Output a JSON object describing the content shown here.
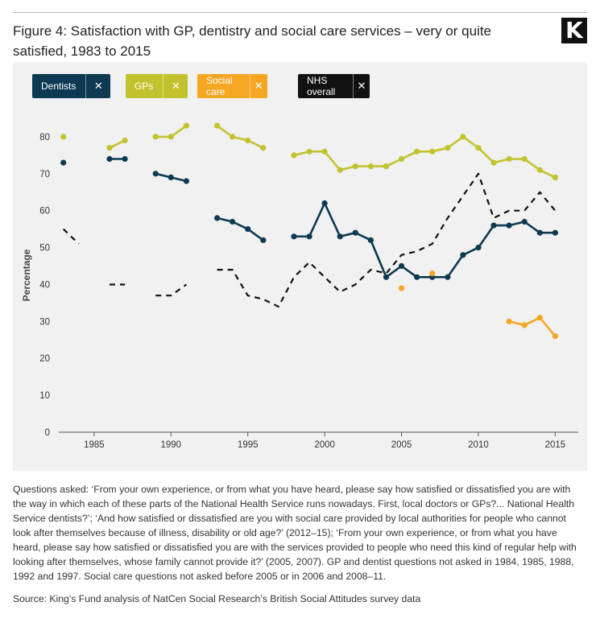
{
  "header": {
    "title": "Figure 4: Satisfaction with GP, dentistry and social care services – very or quite satisfied, 1983 to 2015",
    "logo_letter": "K"
  },
  "legend": [
    {
      "label": "Dentists",
      "close_icon": "close-icon",
      "color": "#0d3a52"
    },
    {
      "label": "GPs",
      "close_icon": "close-icon",
      "color": "#c2c22e"
    },
    {
      "label": "Social care",
      "close_icon": "close-icon",
      "color": "#f5a623"
    },
    {
      "label": "NHS overall",
      "close_icon": "close-icon",
      "color": "#111111"
    }
  ],
  "chart_data": {
    "type": "line",
    "xlabel": "",
    "ylabel": "Percentage",
    "xlim": [
      1982.7,
      2016.5
    ],
    "ylim": [
      0,
      85
    ],
    "xticks": [
      1985,
      1990,
      1995,
      2000,
      2005,
      2010,
      2015
    ],
    "yticks": [
      0,
      10,
      20,
      30,
      40,
      50,
      60,
      70,
      80
    ],
    "grid": false,
    "legend_position": "top-left",
    "series": [
      {
        "name": "Dentists",
        "color": "#0d3a52",
        "style": "solid-markers",
        "x": [
          1983,
          1986,
          1987,
          1989,
          1990,
          1991,
          1993,
          1994,
          1995,
          1996,
          1998,
          1999,
          2000,
          2001,
          2002,
          2003,
          2004,
          2005,
          2006,
          2007,
          2008,
          2009,
          2010,
          2011,
          2012,
          2013,
          2014,
          2015
        ],
        "y": [
          73,
          74,
          74,
          70,
          69,
          68,
          58,
          57,
          55,
          52,
          53,
          53,
          62,
          53,
          54,
          52,
          42,
          45,
          42,
          42,
          42,
          48,
          50,
          56,
          56,
          57,
          54,
          54
        ]
      },
      {
        "name": "GPs",
        "color": "#c2c22e",
        "style": "solid-markers",
        "x": [
          1983,
          1986,
          1987,
          1989,
          1990,
          1991,
          1993,
          1994,
          1995,
          1996,
          1998,
          1999,
          2000,
          2001,
          2002,
          2003,
          2004,
          2005,
          2006,
          2007,
          2008,
          2009,
          2010,
          2011,
          2012,
          2013,
          2014,
          2015
        ],
        "y": [
          80,
          77,
          79,
          80,
          80,
          83,
          83,
          80,
          79,
          77,
          75,
          76,
          76,
          71,
          72,
          72,
          72,
          74,
          76,
          76,
          77,
          80,
          77,
          73,
          74,
          74,
          71,
          69
        ]
      },
      {
        "name": "Social care",
        "color": "#f5a623",
        "style": "solid-markers",
        "x": [
          2005,
          2007,
          2012,
          2013,
          2014,
          2015
        ],
        "y": [
          39,
          43,
          30,
          29,
          31,
          26
        ]
      },
      {
        "name": "NHS overall",
        "color": "#111111",
        "style": "dashed",
        "x": [
          1983,
          1984,
          1986,
          1987,
          1989,
          1990,
          1991,
          1993,
          1994,
          1995,
          1996,
          1997,
          1998,
          1999,
          2000,
          2001,
          2002,
          2003,
          2004,
          2005,
          2006,
          2007,
          2008,
          2009,
          2010,
          2011,
          2012,
          2013,
          2014,
          2015
        ],
        "y": [
          55,
          51,
          40,
          40,
          37,
          37,
          40,
          44,
          44,
          37,
          36,
          34,
          42,
          46,
          42,
          38,
          40,
          44,
          43,
          48,
          49,
          51,
          58,
          64,
          70,
          58,
          60,
          60,
          65,
          60
        ]
      }
    ]
  },
  "notes": "Questions asked: ‘From your own experience, or from what you have heard, please say how satisfied or dissatisfied you are with the way in which each of these parts of the National Health Service runs nowadays. First, local doctors or GPs?... National Health Service dentists?’; ‘And how satisfied or dissatisfied are you with social care provided by local authorities for people who cannot look after themselves because of illness, disability or old age?’ (2012–15); ‘From your own experience, or from what you have heard, please say how satisfied or dissatisfied you are with the services provided to people who need this kind of regular help with looking after themselves, whose family cannot provide it?’ (2005, 2007). GP and dentist questions not asked in 1984, 1985, 1988, 1992 and 1997. Social care questions not asked before 2005 or in 2006 and 2008–11.",
  "source": "Source: King’s Fund analysis of NatCen Social Research’s British Social Attitudes survey data"
}
